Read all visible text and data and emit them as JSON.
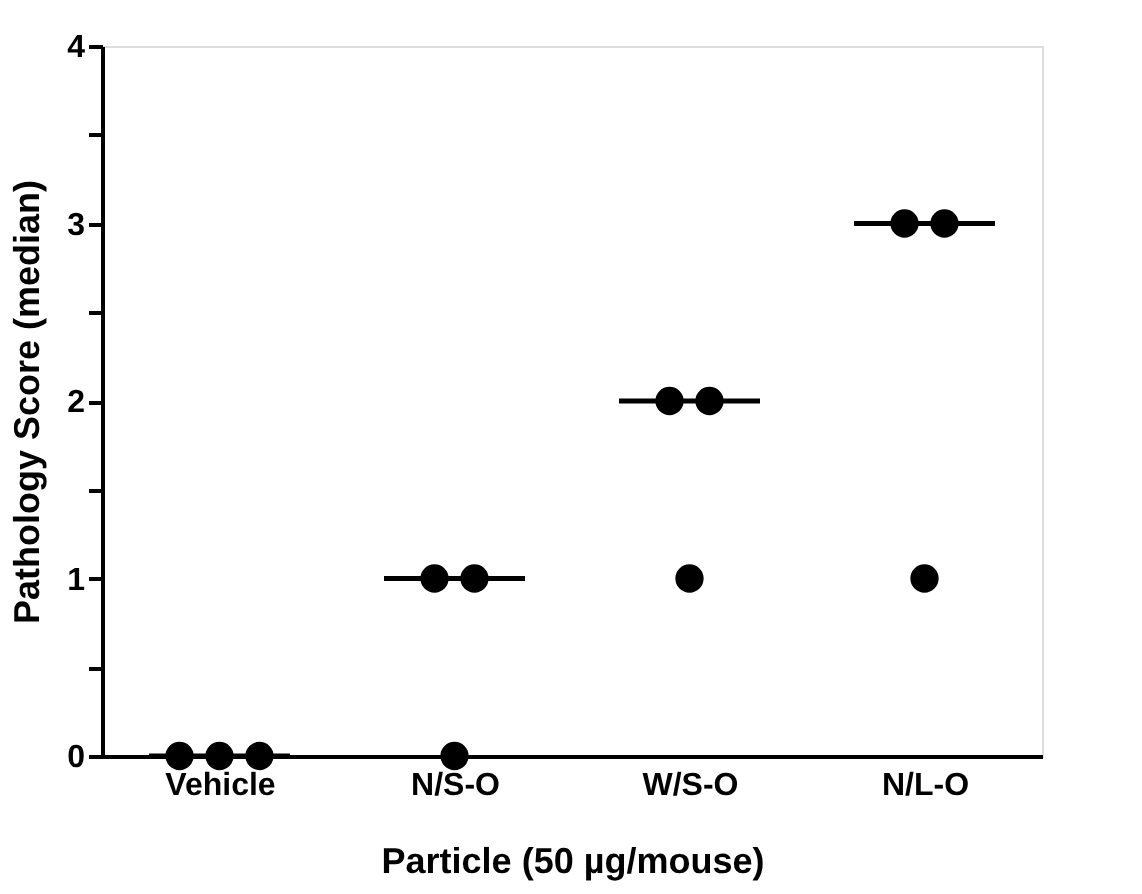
{
  "chart_data": {
    "type": "scatter",
    "xlabel": "Particle (50 µg/mouse)",
    "ylabel": "Pathology Score (median)",
    "categories": [
      "Vehicle",
      "N/S-O",
      "W/S-O",
      "N/L-O"
    ],
    "ylim": [
      0,
      4
    ],
    "yticks": [
      0,
      {
        "value": 0.5,
        "label": null
      },
      1,
      {
        "value": 1.5,
        "label": null
      },
      2,
      {
        "value": 2.5,
        "label": null
      },
      3,
      {
        "value": 3.5,
        "label": null
      },
      4
    ],
    "grid": false,
    "marker": "circle",
    "series": [
      {
        "color": "#000000",
        "x": [
          "Vehicle",
          "Vehicle",
          "Vehicle",
          "N/S-O",
          "N/S-O",
          "N/S-O",
          "W/S-O",
          "W/S-O",
          "W/S-O",
          "N/L-O",
          "N/L-O",
          "N/L-O"
        ],
        "values": [
          0,
          0,
          0,
          1,
          1,
          0,
          2,
          2,
          1,
          3,
          3,
          1
        ]
      },
      {
        "type": "box",
        "color": "#000000",
        "boxes": [
          {
            "low": 0,
            "q1": 0,
            "median": 0,
            "q3": 0,
            "high": 0
          },
          {
            "low": 1,
            "q1": 1,
            "median": 1,
            "q3": 1,
            "high": 1
          },
          {
            "low": 2,
            "q1": 2,
            "median": 2,
            "q3": 2,
            "high": 2
          },
          {
            "low": 3,
            "q1": 3,
            "median": 3,
            "q3": 3,
            "high": 3
          }
        ]
      }
    ]
  }
}
